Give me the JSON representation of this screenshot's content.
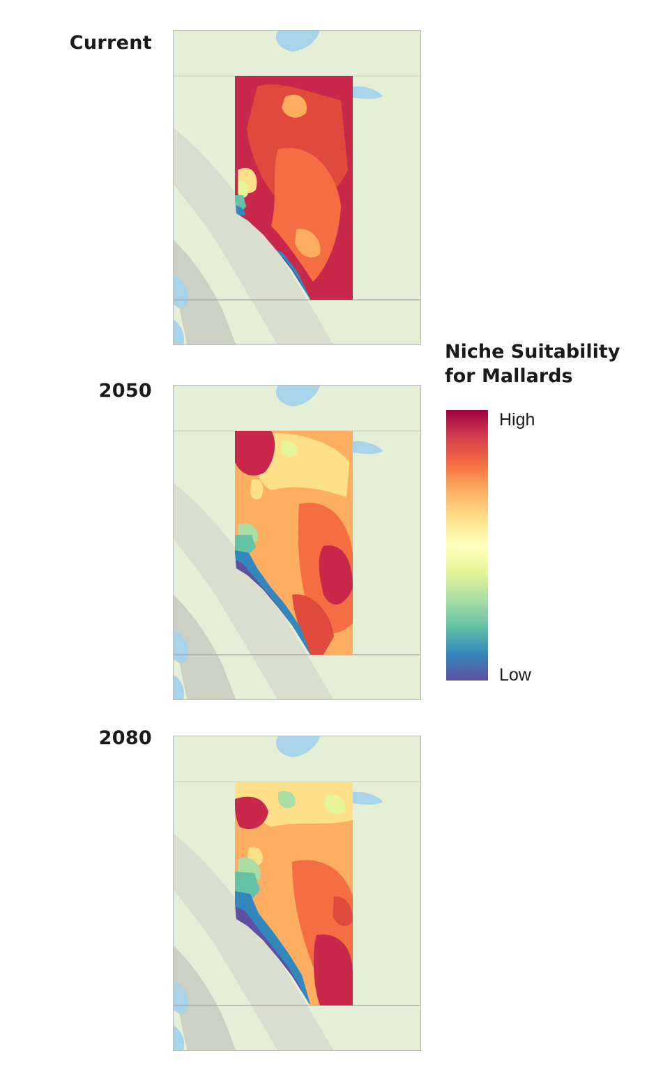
{
  "panels": [
    {
      "label": "Current"
    },
    {
      "label": "2050"
    },
    {
      "label": "2080"
    }
  ],
  "legend": {
    "title_line1": "Niche Suitability",
    "title_line2": "for Mallards",
    "high_label": "High",
    "low_label": "Low",
    "colors": [
      "#9e0142",
      "#d53e4f",
      "#f46d43",
      "#fdae61",
      "#fee08b",
      "#ffffbf",
      "#e6f598",
      "#abdda4",
      "#66c2a5",
      "#3288bd",
      "#5e4fa2"
    ]
  },
  "basemap": {
    "land_color": "#e4efd6",
    "water_color": "#a9d3e8",
    "mountain_color": "#cfcfc8"
  }
}
